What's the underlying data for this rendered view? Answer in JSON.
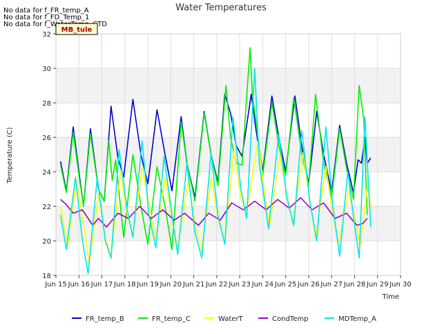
{
  "notes": [
    "No data for f_FR_temp_A",
    "No data for f_FD_Temp_1",
    "No data for f_WaterTemp_CTD"
  ],
  "site_label": "MB_tule",
  "chart_data": {
    "type": "line",
    "title": "Water Temperatures",
    "xlabel": "Time",
    "ylabel": "Temperature (C)",
    "xlim": [
      15,
      30
    ],
    "ylim": [
      18,
      32
    ],
    "x_ticks": [
      15,
      16,
      17,
      18,
      19,
      20,
      21,
      22,
      23,
      24,
      25,
      26,
      27,
      28,
      29,
      30
    ],
    "x_tick_labels": [
      "Jun 15",
      "Jun 16",
      "Jun 17",
      "Jun 18",
      "Jun 19",
      "Jun 20",
      "Jun 21",
      "Jun 22",
      "Jun 23",
      "Jun 24",
      "Jun 25",
      "Jun 26",
      "Jun 27",
      "Jun 28",
      "Jun 29",
      "Jun 30"
    ],
    "y_ticks": [
      18,
      20,
      22,
      24,
      26,
      28,
      30,
      32
    ],
    "y_tick_labels": [
      "18",
      "20",
      "22",
      "24",
      "26",
      "28",
      "30",
      "32"
    ],
    "shaded_bands": [
      [
        20,
        22
      ],
      [
        24,
        26
      ],
      [
        28,
        30
      ]
    ],
    "legend_position": "bottom",
    "series": [
      {
        "name": "FR_temp_B",
        "color": "#0000cc",
        "points": [
          [
            15.2,
            24.6
          ],
          [
            15.45,
            22.9
          ],
          [
            15.75,
            26.6
          ],
          [
            16.0,
            24.0
          ],
          [
            16.2,
            22.0
          ],
          [
            16.5,
            26.5
          ],
          [
            16.85,
            23.0
          ],
          [
            17.1,
            22.3
          ],
          [
            17.4,
            27.8
          ],
          [
            17.7,
            24.8
          ],
          [
            17.95,
            23.7
          ],
          [
            18.35,
            28.2
          ],
          [
            18.7,
            25.0
          ],
          [
            19.0,
            23.3
          ],
          [
            19.4,
            27.6
          ],
          [
            19.75,
            25.0
          ],
          [
            20.05,
            22.9
          ],
          [
            20.45,
            27.2
          ],
          [
            20.7,
            24.5
          ],
          [
            21.05,
            22.5
          ],
          [
            21.45,
            27.5
          ],
          [
            21.75,
            25.0
          ],
          [
            22.05,
            23.4
          ],
          [
            22.35,
            28.5
          ],
          [
            22.6,
            27.4
          ],
          [
            22.85,
            25.5
          ],
          [
            23.1,
            24.9
          ],
          [
            23.5,
            28.5
          ],
          [
            23.7,
            26.5
          ],
          [
            24.0,
            24.0
          ],
          [
            24.4,
            28.4
          ],
          [
            24.7,
            26.0
          ],
          [
            25.0,
            24.0
          ],
          [
            25.4,
            28.4
          ],
          [
            25.7,
            25.5
          ],
          [
            26.0,
            23.3
          ],
          [
            26.35,
            27.5
          ],
          [
            26.65,
            25.0
          ],
          [
            27.0,
            22.8
          ],
          [
            27.35,
            26.7
          ],
          [
            27.65,
            24.5
          ],
          [
            27.95,
            22.8
          ],
          [
            28.15,
            24.7
          ],
          [
            28.3,
            24.5
          ],
          [
            28.45,
            26.0
          ],
          [
            28.55,
            24.5
          ],
          [
            28.7,
            24.8
          ]
        ]
      },
      {
        "name": "FR_temp_C",
        "color": "#00ee00",
        "points": [
          [
            15.2,
            24.4
          ],
          [
            15.45,
            22.8
          ],
          [
            15.75,
            26.3
          ],
          [
            16.0,
            23.8
          ],
          [
            16.2,
            22.0
          ],
          [
            16.5,
            26.2
          ],
          [
            16.85,
            23.0
          ],
          [
            17.1,
            22.3
          ],
          [
            17.3,
            25.8
          ],
          [
            17.45,
            23.5
          ],
          [
            17.6,
            24.7
          ],
          [
            17.95,
            20.2
          ],
          [
            18.35,
            25.0
          ],
          [
            18.7,
            22.0
          ],
          [
            19.0,
            19.8
          ],
          [
            19.4,
            24.3
          ],
          [
            19.75,
            22.0
          ],
          [
            20.05,
            19.5
          ],
          [
            20.45,
            26.9
          ],
          [
            20.7,
            24.5
          ],
          [
            21.05,
            22.3
          ],
          [
            21.45,
            27.4
          ],
          [
            21.75,
            25.0
          ],
          [
            22.05,
            23.2
          ],
          [
            22.4,
            29.0
          ],
          [
            22.6,
            26.0
          ],
          [
            22.85,
            24.5
          ],
          [
            23.1,
            24.4
          ],
          [
            23.45,
            31.2
          ],
          [
            23.55,
            28.5
          ],
          [
            23.7,
            27.0
          ],
          [
            24.0,
            23.8
          ],
          [
            24.4,
            28.0
          ],
          [
            24.7,
            25.5
          ],
          [
            25.0,
            23.8
          ],
          [
            25.35,
            28.3
          ],
          [
            25.7,
            25.0
          ],
          [
            26.0,
            23.2
          ],
          [
            26.3,
            28.5
          ],
          [
            26.65,
            24.5
          ],
          [
            27.0,
            22.5
          ],
          [
            27.35,
            26.5
          ],
          [
            27.65,
            24.2
          ],
          [
            27.95,
            22.4
          ],
          [
            28.2,
            29.0
          ],
          [
            28.4,
            27.0
          ],
          [
            28.55,
            21.5
          ]
        ]
      },
      {
        "name": "WaterT",
        "color": "#ffff00",
        "points": [
          [
            15.2,
            22.0
          ],
          [
            15.5,
            19.7
          ],
          [
            15.9,
            23.5
          ],
          [
            16.25,
            20.5
          ],
          [
            16.45,
            18.7
          ],
          [
            16.85,
            22.7
          ],
          [
            17.15,
            20.2
          ],
          [
            17.4,
            19.1
          ],
          [
            17.8,
            24.0
          ],
          [
            18.1,
            21.5
          ],
          [
            18.35,
            20.3
          ],
          [
            18.75,
            24.3
          ],
          [
            19.1,
            21.8
          ],
          [
            19.35,
            20.0
          ],
          [
            19.75,
            23.7
          ],
          [
            20.1,
            20.9
          ],
          [
            20.3,
            19.5
          ],
          [
            20.75,
            23.5
          ],
          [
            21.05,
            21.0
          ],
          [
            21.35,
            19.4
          ],
          [
            21.75,
            23.7
          ],
          [
            22.05,
            21.3
          ],
          [
            22.35,
            19.9
          ],
          [
            22.75,
            25.2
          ],
          [
            23.05,
            22.5
          ],
          [
            23.3,
            21.7
          ],
          [
            23.8,
            25.8
          ],
          [
            24.1,
            22.5
          ],
          [
            24.3,
            20.9
          ],
          [
            24.75,
            25.0
          ],
          [
            25.05,
            22.7
          ],
          [
            25.3,
            21.0
          ],
          [
            25.75,
            25.1
          ],
          [
            26.05,
            22.3
          ],
          [
            26.3,
            20.2
          ],
          [
            26.75,
            24.3
          ],
          [
            27.05,
            21.5
          ],
          [
            27.3,
            19.9
          ],
          [
            27.75,
            22.9
          ],
          [
            28.05,
            21.0
          ],
          [
            28.25,
            19.8
          ],
          [
            28.55,
            23.1
          ],
          [
            28.75,
            21.8
          ]
        ]
      },
      {
        "name": "CondTemp",
        "color": "#9900cc",
        "points": [
          [
            15.2,
            22.4
          ],
          [
            15.45,
            22.1
          ],
          [
            15.75,
            21.6
          ],
          [
            16.15,
            21.8
          ],
          [
            16.6,
            20.9
          ],
          [
            16.85,
            21.3
          ],
          [
            17.2,
            20.8
          ],
          [
            17.7,
            21.6
          ],
          [
            18.15,
            21.3
          ],
          [
            18.65,
            22.0
          ],
          [
            19.15,
            21.3
          ],
          [
            19.65,
            21.8
          ],
          [
            20.15,
            21.2
          ],
          [
            20.6,
            21.6
          ],
          [
            21.2,
            20.9
          ],
          [
            21.65,
            21.6
          ],
          [
            22.15,
            21.2
          ],
          [
            22.65,
            22.2
          ],
          [
            23.15,
            21.8
          ],
          [
            23.65,
            22.3
          ],
          [
            24.15,
            21.8
          ],
          [
            24.65,
            22.4
          ],
          [
            25.15,
            21.9
          ],
          [
            25.65,
            22.5
          ],
          [
            26.15,
            21.8
          ],
          [
            26.65,
            22.2
          ],
          [
            27.15,
            21.3
          ],
          [
            27.65,
            21.6
          ],
          [
            28.1,
            20.9
          ],
          [
            28.35,
            21.0
          ],
          [
            28.55,
            21.3
          ]
        ]
      },
      {
        "name": "MDTemp_A",
        "color": "#00e5ee",
        "points": [
          [
            15.2,
            21.5
          ],
          [
            15.45,
            19.5
          ],
          [
            15.85,
            23.7
          ],
          [
            16.15,
            20.0
          ],
          [
            16.4,
            18.1
          ],
          [
            16.8,
            23.7
          ],
          [
            17.15,
            20.0
          ],
          [
            17.4,
            19.0
          ],
          [
            17.75,
            25.3
          ],
          [
            18.1,
            21.8
          ],
          [
            18.35,
            20.2
          ],
          [
            18.75,
            25.8
          ],
          [
            19.05,
            21.5
          ],
          [
            19.35,
            19.6
          ],
          [
            19.7,
            24.9
          ],
          [
            20.05,
            21.5
          ],
          [
            20.3,
            19.2
          ],
          [
            20.7,
            24.5
          ],
          [
            21.05,
            20.5
          ],
          [
            21.35,
            19.0
          ],
          [
            21.75,
            25.1
          ],
          [
            22.05,
            21.5
          ],
          [
            22.35,
            19.8
          ],
          [
            22.7,
            27.2
          ],
          [
            23.05,
            23.0
          ],
          [
            23.3,
            21.3
          ],
          [
            23.65,
            30.0
          ],
          [
            23.85,
            24.5
          ],
          [
            24.25,
            20.7
          ],
          [
            24.7,
            26.2
          ],
          [
            25.05,
            22.5
          ],
          [
            25.35,
            20.9
          ],
          [
            25.7,
            26.4
          ],
          [
            26.05,
            22.3
          ],
          [
            26.35,
            20.0
          ],
          [
            26.75,
            26.6
          ],
          [
            27.05,
            22.0
          ],
          [
            27.35,
            19.1
          ],
          [
            27.7,
            24.0
          ],
          [
            28.0,
            20.9
          ],
          [
            28.2,
            19.0
          ],
          [
            28.45,
            27.2
          ],
          [
            28.7,
            20.8
          ]
        ]
      }
    ]
  }
}
